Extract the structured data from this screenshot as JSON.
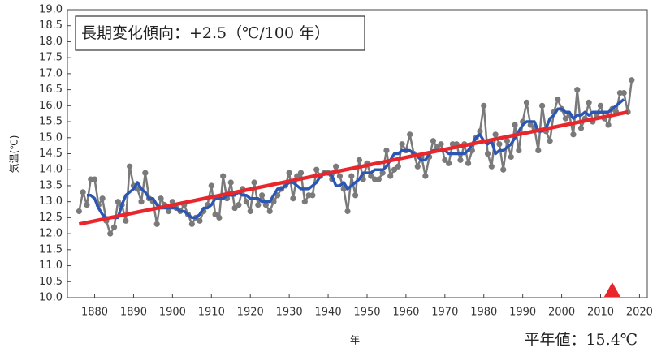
{
  "chart_data": {
    "type": "line",
    "annotation": "長期変化傾向：+2.5（℃/100 年）",
    "normal_label": "平年値：15.4℃",
    "ylabel": "気温(℃)",
    "xlabel": "年",
    "xlim": [
      1873,
      2022
    ],
    "ylim": [
      10,
      19
    ],
    "xticks": [
      1880,
      1890,
      1900,
      1910,
      1920,
      1930,
      1940,
      1950,
      1960,
      1970,
      1980,
      1990,
      2000,
      2010,
      2020
    ],
    "yticks": [
      {
        "value": 10,
        "label": "10.0"
      },
      {
        "value": 10.5,
        "label": "10.5"
      },
      {
        "value": 11,
        "label": "11.0"
      },
      {
        "value": 11.5,
        "label": "11.5"
      },
      {
        "value": 12,
        "label": "12.0"
      },
      {
        "value": 12.5,
        "label": "12.5"
      },
      {
        "value": 13,
        "label": "13.0"
      },
      {
        "value": 13.5,
        "label": "13.5"
      },
      {
        "value": 14,
        "label": "14.0"
      },
      {
        "value": 14.5,
        "label": "14.5"
      },
      {
        "value": 15,
        "label": "15.0"
      },
      {
        "value": 15.5,
        "label": "15.5"
      },
      {
        "value": 16,
        "label": "16.0"
      },
      {
        "value": 16.5,
        "label": "16.5"
      },
      {
        "value": 17,
        "label": "17.0"
      },
      {
        "value": 17.5,
        "label": "17.5"
      },
      {
        "value": 18,
        "label": "18.0"
      },
      {
        "value": 18.5,
        "label": "18.5"
      },
      {
        "value": 19,
        "label": "19.0"
      }
    ],
    "x": [
      1876,
      1877,
      1878,
      1879,
      1880,
      1881,
      1882,
      1883,
      1884,
      1885,
      1886,
      1887,
      1888,
      1889,
      1890,
      1891,
      1892,
      1893,
      1894,
      1895,
      1896,
      1897,
      1898,
      1899,
      1900,
      1901,
      1902,
      1903,
      1904,
      1905,
      1906,
      1907,
      1908,
      1909,
      1910,
      1911,
      1912,
      1913,
      1914,
      1915,
      1916,
      1917,
      1918,
      1919,
      1920,
      1921,
      1922,
      1923,
      1924,
      1925,
      1926,
      1927,
      1928,
      1929,
      1930,
      1931,
      1932,
      1933,
      1934,
      1935,
      1936,
      1937,
      1938,
      1939,
      1940,
      1941,
      1942,
      1943,
      1944,
      1945,
      1946,
      1947,
      1948,
      1949,
      1950,
      1951,
      1952,
      1953,
      1954,
      1955,
      1956,
      1957,
      1958,
      1959,
      1960,
      1961,
      1962,
      1963,
      1964,
      1965,
      1966,
      1967,
      1968,
      1969,
      1970,
      1971,
      1972,
      1973,
      1974,
      1975,
      1976,
      1977,
      1978,
      1979,
      1980,
      1981,
      1982,
      1983,
      1984,
      1985,
      1986,
      1987,
      1988,
      1989,
      1990,
      1991,
      1992,
      1993,
      1994,
      1995,
      1996,
      1997,
      1998,
      1999,
      2000,
      2001,
      2002,
      2003,
      2004,
      2005,
      2006,
      2007,
      2008,
      2009,
      2010,
      2011,
      2012,
      2013,
      2014,
      2015,
      2016,
      2017,
      2018
    ],
    "series": [
      {
        "color": "#7a7a7a",
        "markers": true,
        "values": [
          12.7,
          13.3,
          12.9,
          13.7,
          13.7,
          12.9,
          13.1,
          12.4,
          12.0,
          12.2,
          13.0,
          12.9,
          12.4,
          14.1,
          13.5,
          13.4,
          13.0,
          13.9,
          13.1,
          13.0,
          12.3,
          13.1,
          12.9,
          12.7,
          13.0,
          12.8,
          12.7,
          12.9,
          12.6,
          12.3,
          12.5,
          12.4,
          12.7,
          12.9,
          13.5,
          12.6,
          12.5,
          13.8,
          13.1,
          13.6,
          12.8,
          12.9,
          13.4,
          13.0,
          12.7,
          13.6,
          12.9,
          13.2,
          12.9,
          12.7,
          13.0,
          13.2,
          13.4,
          13.5,
          13.9,
          13.1,
          13.8,
          13.9,
          13.0,
          13.2,
          13.2,
          14.0,
          13.8,
          13.9,
          13.9,
          13.7,
          14.1,
          13.8,
          13.4,
          12.7,
          13.8,
          13.2,
          14.3,
          13.7,
          14.2,
          13.8,
          13.7,
          13.7,
          13.9,
          14.6,
          13.8,
          14.0,
          14.1,
          14.8,
          14.6,
          15.1,
          14.5,
          14.1,
          14.4,
          13.8,
          14.4,
          14.9,
          14.7,
          14.8,
          14.3,
          14.2,
          14.8,
          14.8,
          14.3,
          14.8,
          14.2,
          14.6,
          15.0,
          15.2,
          16.0,
          14.5,
          14.1,
          15.1,
          14.8,
          14.0,
          14.9,
          14.4,
          15.4,
          14.6,
          15.5,
          16.1,
          15.4,
          15.3,
          14.6,
          16.0,
          15.2,
          14.9,
          15.8,
          16.2,
          15.9,
          15.6,
          15.7,
          15.1,
          16.5,
          15.3,
          15.6,
          16.1,
          15.5,
          15.7,
          16.0,
          15.6,
          15.4,
          15.9,
          15.8,
          16.4,
          16.4,
          15.8,
          16.8
        ]
      },
      {
        "color": "#2b56b3",
        "markers": false,
        "values": [
          null,
          null,
          13.2,
          13.2,
          13.1,
          12.8,
          12.6,
          12.5,
          12.5,
          12.5,
          12.5,
          12.9,
          13.2,
          13.3,
          13.4,
          13.6,
          13.4,
          13.3,
          13.1,
          13.1,
          12.9,
          12.8,
          12.8,
          12.8,
          12.8,
          12.8,
          12.7,
          12.7,
          12.6,
          12.5,
          12.5,
          12.6,
          12.8,
          12.8,
          12.9,
          13.1,
          13.1,
          13.1,
          13.2,
          13.2,
          13.2,
          13.3,
          13.2,
          13.2,
          13.1,
          13.1,
          13.1,
          13.0,
          13.0,
          13.0,
          13.2,
          13.4,
          13.4,
          13.5,
          13.6,
          13.6,
          13.5,
          13.4,
          13.4,
          13.4,
          13.5,
          13.6,
          13.8,
          13.9,
          13.9,
          13.8,
          13.5,
          13.5,
          13.6,
          13.4,
          13.5,
          13.6,
          13.7,
          13.9,
          13.9,
          13.9,
          14.0,
          14.0,
          14.0,
          14.1,
          14.3,
          14.5,
          14.5,
          14.6,
          14.6,
          14.6,
          14.5,
          14.4,
          14.3,
          14.3,
          14.5,
          14.6,
          14.6,
          14.6,
          14.6,
          14.5,
          14.5,
          14.5,
          14.5,
          14.5,
          14.6,
          14.8,
          15.0,
          15.1,
          14.9,
          14.8,
          14.9,
          14.5,
          14.6,
          14.6,
          14.7,
          14.8,
          15.0,
          15.2,
          15.4,
          15.5,
          15.5,
          15.5,
          15.2,
          15.2,
          15.3,
          15.6,
          15.7,
          15.9,
          15.9,
          15.8,
          15.8,
          15.6,
          15.7,
          15.7,
          15.8,
          15.7,
          15.8,
          15.8,
          15.8,
          15.8,
          15.8,
          15.9,
          16.0,
          16.1,
          16.2,
          null,
          null
        ]
      }
    ],
    "trend": {
      "color": "#e8262b",
      "x": [
        1876,
        2017
      ],
      "values": [
        12.3,
        15.8
      ]
    },
    "marker": {
      "color": "#e8262b",
      "x": 2013,
      "value": 10
    }
  }
}
